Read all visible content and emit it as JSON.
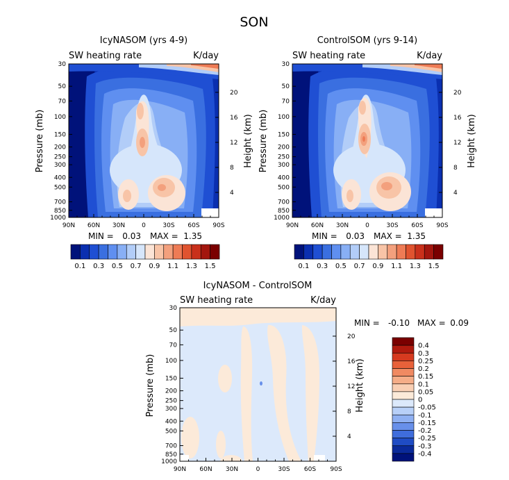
{
  "figure_title": "SON",
  "chart_data": [
    {
      "type": "heatmap",
      "title": "IcyNASOM (yrs 4-9)",
      "variable_label": "SW heating rate",
      "units_label": "K/day",
      "ylabel": "Pressure (mb)",
      "ylabel_right": "Height (km)",
      "x_ticks": [
        "90N",
        "60N",
        "30N",
        "0",
        "30S",
        "60S",
        "90S"
      ],
      "x_range": [
        90,
        -90
      ],
      "y_ticks": [
        30,
        50,
        70,
        100,
        150,
        200,
        250,
        300,
        400,
        500,
        700,
        850,
        1000
      ],
      "y_range": [
        30,
        1000
      ],
      "height_ticks": [
        20,
        16,
        12,
        8,
        4
      ],
      "stats": {
        "min_label": "MIN =",
        "min_value": "0.03",
        "max_label": "MAX =",
        "max_value": "1.35"
      },
      "colorbar": {
        "orientation": "horizontal",
        "labels": [
          "0.1",
          "0.3",
          "0.5",
          "0.7",
          "0.9",
          "1.1",
          "1.3",
          "1.5"
        ],
        "colors": [
          "#00127a",
          "#0a2fb0",
          "#1f4fd3",
          "#3a6fe0",
          "#5f8ff0",
          "#88aff5",
          "#b2cdf8",
          "#d6e6fb",
          "#fbe4d6",
          "#f8c4a7",
          "#f3a07d",
          "#ee7b55",
          "#e0532f",
          "#c9301b",
          "#a3160e",
          "#7a0000"
        ]
      }
    },
    {
      "type": "heatmap",
      "title": "ControlSOM (yrs 9-14)",
      "variable_label": "SW heating rate",
      "units_label": "K/day",
      "ylabel": "Pressure (mb)",
      "ylabel_right": "Height (km)",
      "x_ticks": [
        "90N",
        "60N",
        "30N",
        "0",
        "30S",
        "60S",
        "90S"
      ],
      "x_range": [
        90,
        -90
      ],
      "y_ticks": [
        30,
        50,
        70,
        100,
        150,
        200,
        250,
        300,
        400,
        500,
        700,
        850,
        1000
      ],
      "y_range": [
        30,
        1000
      ],
      "height_ticks": [
        20,
        16,
        12,
        8,
        4
      ],
      "stats": {
        "min_label": "MIN =",
        "min_value": "0.03",
        "max_label": "MAX =",
        "max_value": "1.35"
      },
      "colorbar": {
        "orientation": "horizontal",
        "labels": [
          "0.1",
          "0.3",
          "0.5",
          "0.7",
          "0.9",
          "1.1",
          "1.3",
          "1.5"
        ],
        "colors": [
          "#00127a",
          "#0a2fb0",
          "#1f4fd3",
          "#3a6fe0",
          "#5f8ff0",
          "#88aff5",
          "#b2cdf8",
          "#d6e6fb",
          "#fbe4d6",
          "#f8c4a7",
          "#f3a07d",
          "#ee7b55",
          "#e0532f",
          "#c9301b",
          "#a3160e",
          "#7a0000"
        ]
      }
    },
    {
      "type": "heatmap",
      "title": "IcyNASOM - ControlSOM",
      "variable_label": "SW heating rate",
      "units_label": "K/day",
      "ylabel": "Pressure (mb)",
      "ylabel_right": "Height (km)",
      "x_ticks": [
        "90N",
        "60N",
        "30N",
        "0",
        "30S",
        "60S",
        "90S"
      ],
      "x_range": [
        90,
        -90
      ],
      "y_ticks": [
        30,
        50,
        70,
        100,
        150,
        200,
        250,
        300,
        400,
        500,
        700,
        850,
        1000
      ],
      "y_range": [
        30,
        1000
      ],
      "height_ticks": [
        20,
        16,
        12,
        8,
        4
      ],
      "stats": {
        "min_label": "MIN =",
        "min_value": "-0.10",
        "max_label": "MAX =",
        "max_value": "0.09"
      },
      "colorbar": {
        "orientation": "vertical",
        "labels": [
          "0.4",
          "0.3",
          "0.25",
          "0.2",
          "0.15",
          "0.1",
          "0.05",
          "0",
          "-0.05",
          "-0.1",
          "-0.15",
          "-0.2",
          "-0.25",
          "-0.3",
          "-0.4"
        ],
        "colors": [
          "#7a0000",
          "#b01a0e",
          "#d63a1f",
          "#e8613a",
          "#f08a62",
          "#f5ad88",
          "#f9cfb4",
          "#fcead9",
          "#dce9fb",
          "#b8d0f8",
          "#8fb0f2",
          "#6890ea",
          "#3f6ddc",
          "#1f4cc4",
          "#0a2a9a",
          "#00127a"
        ]
      }
    }
  ]
}
